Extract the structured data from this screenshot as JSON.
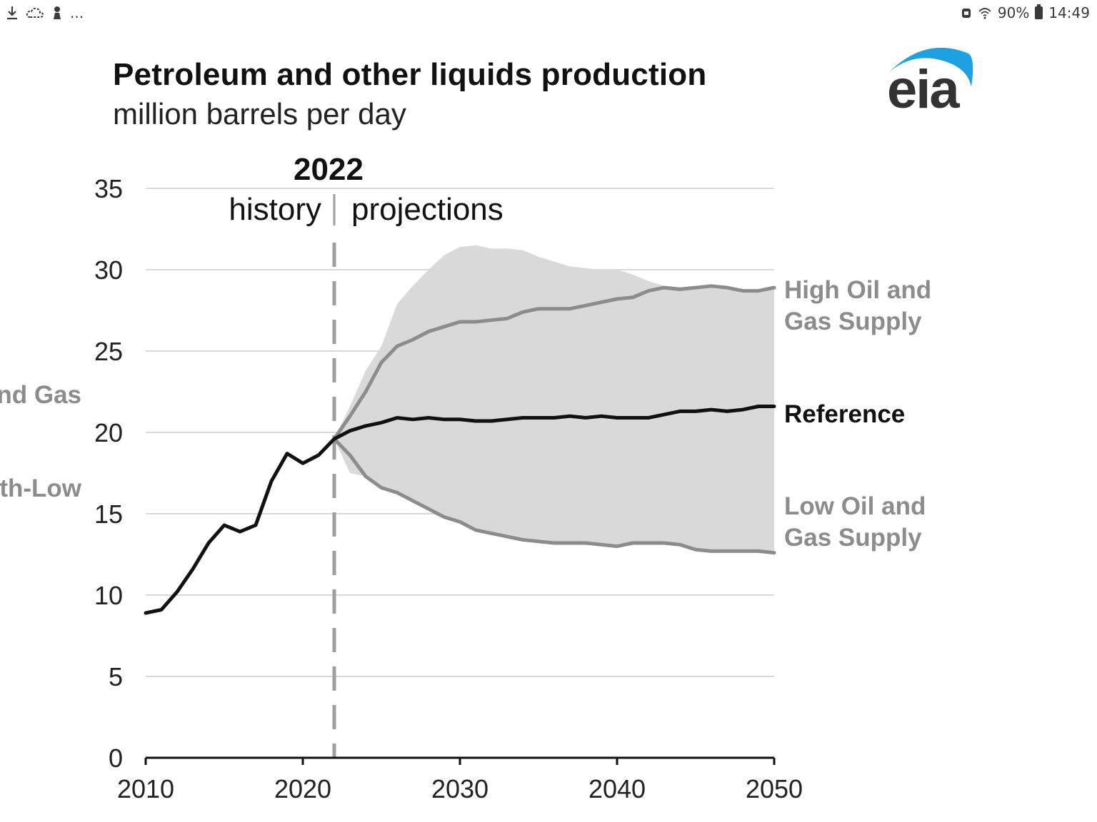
{
  "status_bar": {
    "left_icons": [
      "download-icon",
      "cloud-icon",
      "user-icon"
    ],
    "more": "...",
    "battery": "90%",
    "time": "14:49"
  },
  "header": {
    "title": "Petroleum and other liquids production",
    "subtitle": "million barrels per day",
    "logo_text": "eia"
  },
  "colors": {
    "reference": "#111111",
    "cases": "#8c8c8c",
    "band": "#d9d9d9",
    "divider": "#9e9e9e",
    "grid": "#d9d9d9",
    "logo_arc": "#1ea1e0",
    "logo_text": "#333333"
  },
  "cut_labels": [
    "nd Gas",
    "th-Low"
  ],
  "chart_data": {
    "type": "line",
    "xlim": [
      2010,
      2050
    ],
    "ylim": [
      0,
      35
    ],
    "x_ticks": [
      "2010",
      "2020",
      "2030",
      "2040",
      "2050"
    ],
    "y_ticks": [
      "0",
      "5",
      "10",
      "15",
      "20",
      "25",
      "30",
      "35"
    ],
    "grid": true,
    "divider": {
      "x": 2022,
      "label": "2022",
      "left_label": "history",
      "right_label": "projections"
    },
    "series": [
      {
        "name": "Reference",
        "x": [
          2010,
          2011,
          2012,
          2013,
          2014,
          2015,
          2016,
          2017,
          2018,
          2019,
          2020,
          2021,
          2022,
          2023,
          2024,
          2025,
          2026,
          2027,
          2028,
          2029,
          2030,
          2031,
          2032,
          2033,
          2034,
          2035,
          2036,
          2037,
          2038,
          2039,
          2040,
          2041,
          2042,
          2043,
          2044,
          2045,
          2046,
          2047,
          2048,
          2049,
          2050
        ],
        "y": [
          8.9,
          9.1,
          10.2,
          11.6,
          13.2,
          14.3,
          13.9,
          14.3,
          17.0,
          18.7,
          18.1,
          18.6,
          19.6,
          20.1,
          20.4,
          20.6,
          20.9,
          20.8,
          20.9,
          20.8,
          20.8,
          20.7,
          20.7,
          20.8,
          20.9,
          20.9,
          20.9,
          21.0,
          20.9,
          21.0,
          20.9,
          20.9,
          20.9,
          21.1,
          21.3,
          21.3,
          21.4,
          21.3,
          21.4,
          21.6,
          21.6
        ]
      },
      {
        "name": "High Oil and Gas Supply",
        "x": [
          2022,
          2023,
          2024,
          2025,
          2026,
          2027,
          2028,
          2029,
          2030,
          2031,
          2032,
          2033,
          2034,
          2035,
          2036,
          2037,
          2038,
          2039,
          2040,
          2041,
          2042,
          2043,
          2044,
          2045,
          2046,
          2047,
          2048,
          2049,
          2050
        ],
        "y": [
          19.6,
          21.0,
          22.5,
          24.3,
          25.3,
          25.7,
          26.2,
          26.5,
          26.8,
          26.8,
          26.9,
          27.0,
          27.4,
          27.6,
          27.6,
          27.6,
          27.8,
          28.0,
          28.2,
          28.3,
          28.7,
          28.9,
          28.8,
          28.9,
          29.0,
          28.9,
          28.7,
          28.7,
          28.9
        ]
      },
      {
        "name": "Low Oil and Gas Supply",
        "x": [
          2022,
          2023,
          2024,
          2025,
          2026,
          2027,
          2028,
          2029,
          2030,
          2031,
          2032,
          2033,
          2034,
          2035,
          2036,
          2037,
          2038,
          2039,
          2040,
          2041,
          2042,
          2043,
          2044,
          2045,
          2046,
          2047,
          2048,
          2049,
          2050
        ],
        "y": [
          19.6,
          18.6,
          17.3,
          16.6,
          16.3,
          15.8,
          15.3,
          14.8,
          14.5,
          14.0,
          13.8,
          13.6,
          13.4,
          13.3,
          13.2,
          13.2,
          13.2,
          13.1,
          13.0,
          13.2,
          13.2,
          13.2,
          13.1,
          12.8,
          12.7,
          12.7,
          12.7,
          12.7,
          12.6
        ]
      }
    ],
    "band_upper": {
      "x": [
        2022,
        2023,
        2024,
        2025,
        2026,
        2027,
        2028,
        2029,
        2030,
        2031,
        2032,
        2033,
        2034,
        2035,
        2036,
        2037,
        2038,
        2039,
        2040,
        2041,
        2042,
        2043,
        2044,
        2045,
        2046,
        2047,
        2048,
        2049,
        2050
      ],
      "y": [
        19.6,
        21.6,
        23.8,
        25.3,
        27.9,
        29.0,
        30.0,
        30.9,
        31.4,
        31.5,
        31.3,
        31.3,
        31.2,
        30.8,
        30.5,
        30.2,
        30.1,
        30.0,
        30.0,
        29.7,
        29.3,
        29.0,
        28.8,
        28.9,
        29.0,
        28.9,
        28.7,
        28.7,
        28.9
      ]
    },
    "band_lower": {
      "x": [
        2022,
        2023,
        2024,
        2025,
        2026,
        2027,
        2028,
        2029,
        2030,
        2031,
        2032,
        2033,
        2034,
        2035,
        2036,
        2037,
        2038,
        2039,
        2040,
        2041,
        2042,
        2043,
        2044,
        2045,
        2046,
        2047,
        2048,
        2049,
        2050
      ],
      "y": [
        19.6,
        17.5,
        17.3,
        16.6,
        16.3,
        15.8,
        15.3,
        14.8,
        14.5,
        14.0,
        13.8,
        13.6,
        13.4,
        13.3,
        13.2,
        13.2,
        13.2,
        13.1,
        13.0,
        13.2,
        13.2,
        13.2,
        13.1,
        12.8,
        12.7,
        12.7,
        12.7,
        12.7,
        12.6
      ]
    },
    "labels": [
      {
        "series": "High Oil and Gas Supply",
        "lines": [
          "High Oil and",
          "Gas Supply"
        ]
      },
      {
        "series": "Reference",
        "lines": [
          "Reference"
        ]
      },
      {
        "series": "Low Oil and Gas Supply",
        "lines": [
          "Low Oil and",
          "Gas Supply"
        ]
      }
    ]
  }
}
